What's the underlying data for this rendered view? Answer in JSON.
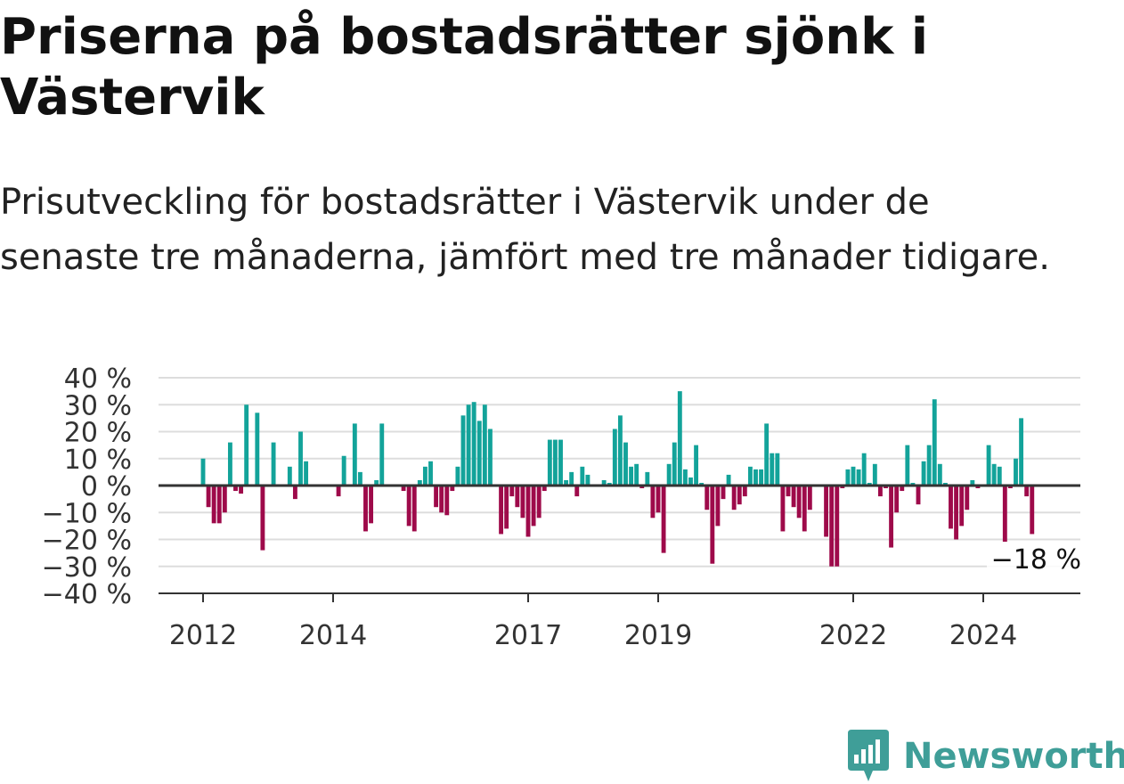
{
  "title": "Priserna på bostadsrätter sjönk i Västervik",
  "subtitle": "Prisutveckling för bostadsrätter i Västervik under de senaste tre månaderna, jämfört med tre månader tidigare.",
  "brand": {
    "name": "Newsworthy",
    "icon": "newsworthy-logo-icon",
    "color": "#3f9e98"
  },
  "colors": {
    "positive": "#13a39a",
    "negative": "#9e0a4a",
    "grid": "#dddddd",
    "axis": "#333333"
  },
  "chart_data": {
    "type": "bar",
    "x_unit": "month",
    "ylim": [
      -40,
      40
    ],
    "y_ticks": [
      {
        "value": 40,
        "label": "40 %"
      },
      {
        "value": 30,
        "label": "30 %"
      },
      {
        "value": 20,
        "label": "20 %"
      },
      {
        "value": 10,
        "label": "10 %"
      },
      {
        "value": 0,
        "label": "0 %"
      },
      {
        "value": -10,
        "label": "−10 %"
      },
      {
        "value": -20,
        "label": "−20 %"
      },
      {
        "value": -30,
        "label": "−30 %"
      },
      {
        "value": -40,
        "label": "−40 %"
      }
    ],
    "x_ticks": [
      {
        "date": "2012-01",
        "label": "2012"
      },
      {
        "date": "2014-01",
        "label": "2014"
      },
      {
        "date": "2017-01",
        "label": "2017"
      },
      {
        "date": "2019-01",
        "label": "2019"
      },
      {
        "date": "2022-01",
        "label": "2022"
      },
      {
        "date": "2024-01",
        "label": "2024"
      }
    ],
    "grid": true,
    "last_value_label": "−18 %",
    "bars": [
      {
        "date": "2012-01",
        "value": 10
      },
      {
        "date": "2012-02",
        "value": -8
      },
      {
        "date": "2012-03",
        "value": -14
      },
      {
        "date": "2012-04",
        "value": -14
      },
      {
        "date": "2012-05",
        "value": -10
      },
      {
        "date": "2012-06",
        "value": 16
      },
      {
        "date": "2012-07",
        "value": -2
      },
      {
        "date": "2012-08",
        "value": -3
      },
      {
        "date": "2012-09",
        "value": 30
      },
      {
        "date": "2012-11",
        "value": 27
      },
      {
        "date": "2012-12",
        "value": -24
      },
      {
        "date": "2013-02",
        "value": 16
      },
      {
        "date": "2013-05",
        "value": 7
      },
      {
        "date": "2013-06",
        "value": -5
      },
      {
        "date": "2013-07",
        "value": 20
      },
      {
        "date": "2013-08",
        "value": 9
      },
      {
        "date": "2014-02",
        "value": -4
      },
      {
        "date": "2014-03",
        "value": 11
      },
      {
        "date": "2014-05",
        "value": 23
      },
      {
        "date": "2014-06",
        "value": 5
      },
      {
        "date": "2014-07",
        "value": -17
      },
      {
        "date": "2014-08",
        "value": -14
      },
      {
        "date": "2014-09",
        "value": 2
      },
      {
        "date": "2014-10",
        "value": 23
      },
      {
        "date": "2015-02",
        "value": -2
      },
      {
        "date": "2015-03",
        "value": -15
      },
      {
        "date": "2015-04",
        "value": -17
      },
      {
        "date": "2015-05",
        "value": 2
      },
      {
        "date": "2015-06",
        "value": 7
      },
      {
        "date": "2015-07",
        "value": 9
      },
      {
        "date": "2015-08",
        "value": -8
      },
      {
        "date": "2015-09",
        "value": -10
      },
      {
        "date": "2015-10",
        "value": -11
      },
      {
        "date": "2015-11",
        "value": -2
      },
      {
        "date": "2015-12",
        "value": 7
      },
      {
        "date": "2016-01",
        "value": 26
      },
      {
        "date": "2016-02",
        "value": 30
      },
      {
        "date": "2016-03",
        "value": 31
      },
      {
        "date": "2016-04",
        "value": 24
      },
      {
        "date": "2016-05",
        "value": 30
      },
      {
        "date": "2016-06",
        "value": 21
      },
      {
        "date": "2016-08",
        "value": -18
      },
      {
        "date": "2016-09",
        "value": -16
      },
      {
        "date": "2016-10",
        "value": -4
      },
      {
        "date": "2016-11",
        "value": -8
      },
      {
        "date": "2016-12",
        "value": -12
      },
      {
        "date": "2017-01",
        "value": -19
      },
      {
        "date": "2017-02",
        "value": -15
      },
      {
        "date": "2017-03",
        "value": -12
      },
      {
        "date": "2017-04",
        "value": -2
      },
      {
        "date": "2017-05",
        "value": 17
      },
      {
        "date": "2017-06",
        "value": 17
      },
      {
        "date": "2017-07",
        "value": 17
      },
      {
        "date": "2017-08",
        "value": 2
      },
      {
        "date": "2017-09",
        "value": 5
      },
      {
        "date": "2017-10",
        "value": -4
      },
      {
        "date": "2017-11",
        "value": 7
      },
      {
        "date": "2017-12",
        "value": 4
      },
      {
        "date": "2018-03",
        "value": 2
      },
      {
        "date": "2018-04",
        "value": 1
      },
      {
        "date": "2018-05",
        "value": 21
      },
      {
        "date": "2018-06",
        "value": 26
      },
      {
        "date": "2018-07",
        "value": 16
      },
      {
        "date": "2018-08",
        "value": 7
      },
      {
        "date": "2018-09",
        "value": 8
      },
      {
        "date": "2018-10",
        "value": -1
      },
      {
        "date": "2018-11",
        "value": 5
      },
      {
        "date": "2018-12",
        "value": -12
      },
      {
        "date": "2019-01",
        "value": -10
      },
      {
        "date": "2019-02",
        "value": -25
      },
      {
        "date": "2019-03",
        "value": 8
      },
      {
        "date": "2019-04",
        "value": 16
      },
      {
        "date": "2019-05",
        "value": 35
      },
      {
        "date": "2019-06",
        "value": 6
      },
      {
        "date": "2019-07",
        "value": 3
      },
      {
        "date": "2019-08",
        "value": 15
      },
      {
        "date": "2019-09",
        "value": 1
      },
      {
        "date": "2019-10",
        "value": -9
      },
      {
        "date": "2019-11",
        "value": -29
      },
      {
        "date": "2019-12",
        "value": -15
      },
      {
        "date": "2020-01",
        "value": -5
      },
      {
        "date": "2020-02",
        "value": 4
      },
      {
        "date": "2020-03",
        "value": -9
      },
      {
        "date": "2020-04",
        "value": -7
      },
      {
        "date": "2020-05",
        "value": -4
      },
      {
        "date": "2020-06",
        "value": 7
      },
      {
        "date": "2020-07",
        "value": 6
      },
      {
        "date": "2020-08",
        "value": 6
      },
      {
        "date": "2020-09",
        "value": 23
      },
      {
        "date": "2020-10",
        "value": 12
      },
      {
        "date": "2020-11",
        "value": 12
      },
      {
        "date": "2020-12",
        "value": -17
      },
      {
        "date": "2021-01",
        "value": -4
      },
      {
        "date": "2021-02",
        "value": -8
      },
      {
        "date": "2021-03",
        "value": -12
      },
      {
        "date": "2021-04",
        "value": -17
      },
      {
        "date": "2021-05",
        "value": -9
      },
      {
        "date": "2021-08",
        "value": -19
      },
      {
        "date": "2021-09",
        "value": -30
      },
      {
        "date": "2021-10",
        "value": -30
      },
      {
        "date": "2021-11",
        "value": -1
      },
      {
        "date": "2021-12",
        "value": 6
      },
      {
        "date": "2022-01",
        "value": 7
      },
      {
        "date": "2022-02",
        "value": 6
      },
      {
        "date": "2022-03",
        "value": 12
      },
      {
        "date": "2022-04",
        "value": 1
      },
      {
        "date": "2022-05",
        "value": 8
      },
      {
        "date": "2022-06",
        "value": -4
      },
      {
        "date": "2022-07",
        "value": -1
      },
      {
        "date": "2022-08",
        "value": -23
      },
      {
        "date": "2022-09",
        "value": -10
      },
      {
        "date": "2022-10",
        "value": -2
      },
      {
        "date": "2022-11",
        "value": 15
      },
      {
        "date": "2022-12",
        "value": 1
      },
      {
        "date": "2023-01",
        "value": -7
      },
      {
        "date": "2023-02",
        "value": 9
      },
      {
        "date": "2023-03",
        "value": 15
      },
      {
        "date": "2023-04",
        "value": 32
      },
      {
        "date": "2023-05",
        "value": 8
      },
      {
        "date": "2023-06",
        "value": 1
      },
      {
        "date": "2023-07",
        "value": -16
      },
      {
        "date": "2023-08",
        "value": -20
      },
      {
        "date": "2023-09",
        "value": -15
      },
      {
        "date": "2023-10",
        "value": -9
      },
      {
        "date": "2023-11",
        "value": 2
      },
      {
        "date": "2023-12",
        "value": -1
      },
      {
        "date": "2024-02",
        "value": 15
      },
      {
        "date": "2024-03",
        "value": 8
      },
      {
        "date": "2024-04",
        "value": 7
      },
      {
        "date": "2024-05",
        "value": -21
      },
      {
        "date": "2024-06",
        "value": -1
      },
      {
        "date": "2024-07",
        "value": 10
      },
      {
        "date": "2024-08",
        "value": 25
      },
      {
        "date": "2024-09",
        "value": -4
      },
      {
        "date": "2024-10",
        "value": -18
      }
    ]
  }
}
